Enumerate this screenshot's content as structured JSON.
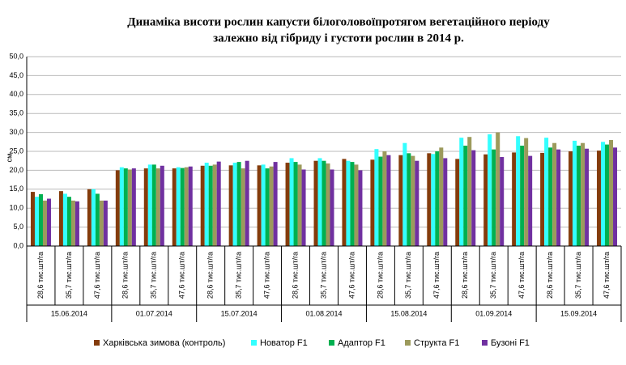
{
  "chart_data": {
    "type": "bar",
    "title": [
      "Динаміка висоти рослин капусти білоголовоїпротягом вегетаційного періоду",
      "залежно від гібриду і густоти рослин в 2014 р."
    ],
    "y_label": "см",
    "categories": [
      "28,6 тис.шт/га",
      "35,7 тис.шт/га",
      "47,6 тис.шт/га",
      "28,6 тис.шт/га",
      "35,7 тис.шт/га",
      "47,6 тис.шт/га",
      "28,6 тис.шт/га",
      "35,7 тис.шт/га",
      "47,6 тис.шт/га",
      "28,6 тис.шт/га",
      "35,7 тис.шт/га",
      "47,6 тис.шт/га",
      "28,6 тис.шт/га",
      "35,7 тис.шт/га",
      "47,6 тис.шт/га",
      "28,6 тис.шт/га",
      "35,7 тис.шт/га",
      "47,6 тис.шт/га",
      "28,6 тис.шт/га",
      "35,7 тис.шт/га",
      "47,6 тис.шт/га"
    ],
    "groups": [
      "15.06.2014",
      "01.07.2014",
      "15.07.2014",
      "01.08.2014",
      "15.08.2014",
      "01.09.2014",
      "15.09.2014"
    ],
    "series": [
      {
        "name": "Харківська зимова (контроль)",
        "color": "#843c0c",
        "values": [
          14.3,
          14.5,
          15,
          20,
          20.5,
          20.5,
          21.2,
          21.3,
          21.3,
          22,
          22.5,
          23,
          22.8,
          24,
          24.5,
          23,
          24.2,
          24.7,
          24.6,
          25,
          25.2
        ]
      },
      {
        "name": "Новатор F1",
        "color": "#33ffff",
        "values": [
          13,
          13.8,
          15,
          20.8,
          21.5,
          20.8,
          22,
          22,
          21.5,
          23.2,
          23.2,
          22.5,
          25.6,
          27.2,
          24.3,
          28.6,
          29.5,
          29,
          28.6,
          27.8,
          27.5
        ]
      },
      {
        "name": "Адаптор  F1",
        "color": "#00b050",
        "values": [
          13.7,
          13,
          13.8,
          20.5,
          21.5,
          20.6,
          21.2,
          22.2,
          20.5,
          22.2,
          22.5,
          22.2,
          23.6,
          24.5,
          25,
          26.5,
          25.5,
          26.5,
          26,
          26.5,
          26.8
        ]
      },
      {
        "name": "Структа F1",
        "color": "#9c9a5c",
        "values": [
          12,
          12,
          12,
          20.2,
          20.5,
          20.8,
          21.5,
          20.5,
          21,
          21.5,
          21.8,
          21.5,
          25,
          23.8,
          26,
          28.8,
          30,
          28.5,
          27.2,
          27.2,
          28
        ]
      },
      {
        "name": "Бузоні F1",
        "color": "#7030a0",
        "values": [
          12.5,
          11.8,
          12,
          20.5,
          21.2,
          21,
          22.3,
          22.5,
          22.2,
          20.2,
          20.2,
          20,
          24,
          22.5,
          23.2,
          25.3,
          23.5,
          23.8,
          25.5,
          25.7,
          26
        ]
      }
    ],
    "ylim": [
      0,
      50
    ],
    "yticks": [
      {
        "value": 0,
        "label": "0,0"
      },
      {
        "value": 5,
        "label": "5,0"
      },
      {
        "value": 10,
        "label": "10,0"
      },
      {
        "value": 15,
        "label": "15,0"
      },
      {
        "value": 20,
        "label": "20,0"
      },
      {
        "value": 25,
        "label": "25,0"
      },
      {
        "value": 30,
        "label": "30,0"
      },
      {
        "value": 35,
        "label": "35,0"
      },
      {
        "value": 40,
        "label": "40,0"
      },
      {
        "value": 45,
        "label": "45,0"
      },
      {
        "value": 50,
        "label": "50,0"
      }
    ],
    "grid": true
  }
}
